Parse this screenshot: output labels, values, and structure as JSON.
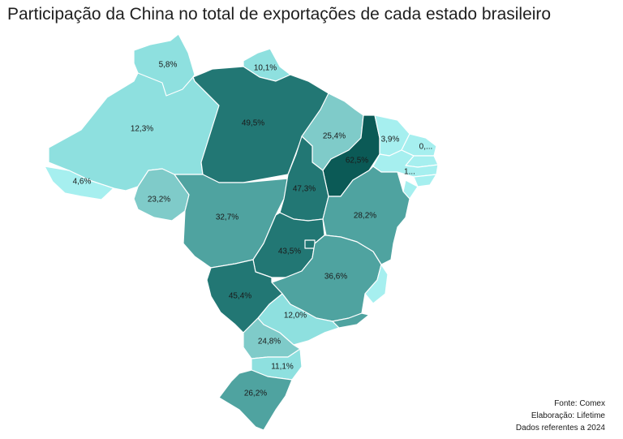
{
  "title": "Participação da China no total de exportações de cada estado brasileiro",
  "colors": {
    "very_light": "#a6efef",
    "light": "#8ee0df",
    "mid_light": "#7fcbc9",
    "mid": "#4fa3a0",
    "dark": "#227774",
    "darkest": "#0b5a56"
  },
  "regions": [
    {
      "id": "AM",
      "label": "12,3%",
      "value": 12.3,
      "color": "light"
    },
    {
      "id": "RR",
      "label": "5,8%",
      "value": 5.8,
      "color": "light"
    },
    {
      "id": "AP",
      "label": "10,1%",
      "value": 10.1,
      "color": "light"
    },
    {
      "id": "PA",
      "label": "49,5%",
      "value": 49.5,
      "color": "dark"
    },
    {
      "id": "AC",
      "label": "4,6%",
      "value": 4.6,
      "color": "very_light"
    },
    {
      "id": "RO",
      "label": "23,2%",
      "value": 23.2,
      "color": "mid_light"
    },
    {
      "id": "MT",
      "label": "32,7%",
      "value": 32.7,
      "color": "mid"
    },
    {
      "id": "MA",
      "label": "25,4%",
      "value": 25.4,
      "color": "mid_light"
    },
    {
      "id": "PI",
      "label": "62,5%",
      "value": 62.5,
      "color": "darkest"
    },
    {
      "id": "CE",
      "label": "3,9%",
      "value": 3.9,
      "color": "very_light"
    },
    {
      "id": "RN",
      "label": "0,...",
      "value": null,
      "color": "very_light"
    },
    {
      "id": "PB",
      "label": "",
      "value": null,
      "color": "very_light"
    },
    {
      "id": "PE",
      "label": "1...",
      "value": null,
      "color": "very_light"
    },
    {
      "id": "AL",
      "label": "",
      "value": null,
      "color": "very_light"
    },
    {
      "id": "SE",
      "label": "",
      "value": null,
      "color": "very_light"
    },
    {
      "id": "TO",
      "label": "47,3%",
      "value": 47.3,
      "color": "dark"
    },
    {
      "id": "BA",
      "label": "28,2%",
      "value": 28.2,
      "color": "mid"
    },
    {
      "id": "GO",
      "label": "43,5%",
      "value": 43.5,
      "color": "dark"
    },
    {
      "id": "DF",
      "label": "",
      "value": null,
      "color": "dark"
    },
    {
      "id": "MG",
      "label": "36,6%",
      "value": 36.6,
      "color": "mid"
    },
    {
      "id": "ES",
      "label": "",
      "value": null,
      "color": "very_light"
    },
    {
      "id": "MS",
      "label": "45,4%",
      "value": 45.4,
      "color": "dark"
    },
    {
      "id": "SP",
      "label": "12,0%",
      "value": 12.0,
      "color": "light"
    },
    {
      "id": "RJ",
      "label": "",
      "value": null,
      "color": "mid"
    },
    {
      "id": "PR",
      "label": "24,8%",
      "value": 24.8,
      "color": "mid_light"
    },
    {
      "id": "SC",
      "label": "11,1%",
      "value": 11.1,
      "color": "light"
    },
    {
      "id": "RS",
      "label": "26,2%",
      "value": 26.2,
      "color": "mid"
    }
  ],
  "credits": {
    "source": "Fonte: Comex",
    "author": "Elaboração: Lifetime",
    "period": "Dados referentes a 2024"
  }
}
